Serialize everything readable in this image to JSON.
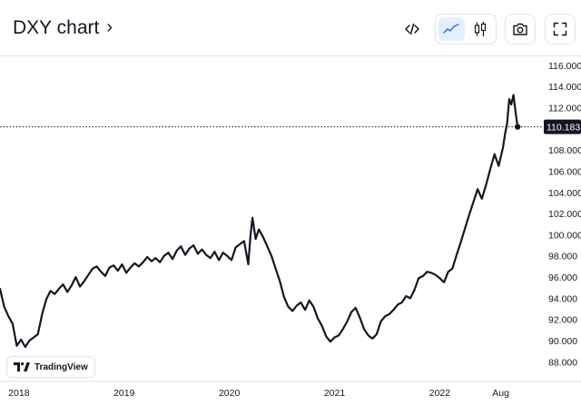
{
  "header": {
    "title": "DXY chart",
    "chevron": "›",
    "tools": {
      "embed_icon": "code-icon",
      "line_icon": "line-chart-icon",
      "candle_icon": "candlestick-icon",
      "camera_icon": "camera-icon",
      "fullscreen_icon": "fullscreen-icon"
    }
  },
  "watermark": {
    "text": "TradingView",
    "icon": "tradingview-logo-icon"
  },
  "colors": {
    "line": "#131722",
    "accent": "#2962ff",
    "active_bg": "#e3effd",
    "price_label_bg": "#131722"
  },
  "chart_data": {
    "type": "line",
    "ylim": [
      87.0,
      116.5
    ],
    "y_ticks": [
      "116.000",
      "114.000",
      "112.000",
      "110.000",
      "108.000",
      "106.000",
      "104.000",
      "102.000",
      "100.000",
      "98.000",
      "96.000",
      "94.000",
      "92.000",
      "90.000",
      "88.000"
    ],
    "y_tick_values": [
      116,
      114,
      112,
      110,
      108,
      106,
      104,
      102,
      100,
      98,
      96,
      94,
      92,
      90,
      88
    ],
    "x_ticks": [
      {
        "label": "2018",
        "x": 2018.0
      },
      {
        "label": "2019",
        "x": 2019.0
      },
      {
        "label": "2020",
        "x": 2020.0
      },
      {
        "label": "2021",
        "x": 2021.0
      },
      {
        "label": "2022",
        "x": 2022.0
      },
      {
        "label": "Aug",
        "x": 2022.58
      }
    ],
    "xlim": [
      2017.82,
      2022.98
    ],
    "last_price": {
      "label": "110.183",
      "value": 110.183
    },
    "series": [
      {
        "x": [
          2017.82,
          2017.86,
          2017.9,
          2017.94,
          2017.98,
          2018.02,
          2018.06,
          2018.1,
          2018.14,
          2018.18,
          2018.22,
          2018.26,
          2018.3,
          2018.34,
          2018.38,
          2018.42,
          2018.46,
          2018.5,
          2018.54,
          2018.58,
          2018.62,
          2018.66,
          2018.7,
          2018.74,
          2018.78,
          2018.82,
          2018.86,
          2018.9,
          2018.94,
          2018.98,
          2019.02,
          2019.06,
          2019.1,
          2019.14,
          2019.18,
          2019.22,
          2019.26,
          2019.3,
          2019.34,
          2019.38,
          2019.42,
          2019.46,
          2019.5,
          2019.54,
          2019.58,
          2019.62,
          2019.66,
          2019.7,
          2019.74,
          2019.78,
          2019.82,
          2019.86,
          2019.9,
          2019.94,
          2019.98,
          2020.02,
          2020.06,
          2020.1,
          2020.14,
          2020.18,
          2020.2,
          2020.22,
          2020.25,
          2020.28,
          2020.32,
          2020.36,
          2020.4,
          2020.44,
          2020.48,
          2020.52,
          2020.56,
          2020.6,
          2020.64,
          2020.68,
          2020.72,
          2020.76,
          2020.8,
          2020.84,
          2020.88,
          2020.92,
          2020.96,
          2021.0,
          2021.04,
          2021.08,
          2021.12,
          2021.16,
          2021.2,
          2021.24,
          2021.28,
          2021.32,
          2021.36,
          2021.4,
          2021.44,
          2021.48,
          2021.52,
          2021.56,
          2021.6,
          2021.64,
          2021.68,
          2021.72,
          2021.76,
          2021.8,
          2021.84,
          2021.88,
          2021.92,
          2021.96,
          2022.0,
          2022.04,
          2022.08,
          2022.12,
          2022.16,
          2022.2,
          2022.24,
          2022.28,
          2022.32,
          2022.36,
          2022.4,
          2022.44,
          2022.48,
          2022.52,
          2022.56,
          2022.6,
          2022.62,
          2022.64,
          2022.66,
          2022.68,
          2022.7,
          2022.72,
          2022.74
        ],
        "y": [
          94.9,
          93.2,
          92.3,
          91.6,
          89.5,
          90.1,
          89.4,
          90.0,
          90.3,
          90.6,
          92.5,
          93.9,
          94.7,
          94.4,
          94.9,
          95.3,
          94.6,
          95.2,
          96.0,
          95.1,
          95.6,
          96.2,
          96.8,
          97.0,
          96.5,
          96.1,
          96.9,
          97.1,
          96.6,
          97.2,
          96.4,
          96.9,
          97.3,
          97.0,
          97.4,
          97.9,
          97.5,
          97.8,
          97.4,
          98.0,
          98.3,
          97.7,
          98.5,
          98.9,
          98.1,
          98.7,
          99.0,
          98.2,
          98.6,
          98.1,
          97.8,
          98.4,
          97.6,
          98.3,
          98.0,
          97.6,
          98.8,
          99.1,
          99.4,
          97.2,
          99.8,
          101.6,
          99.6,
          100.5,
          99.8,
          98.9,
          98.0,
          96.8,
          95.6,
          94.1,
          93.2,
          92.8,
          93.3,
          93.6,
          92.9,
          93.8,
          93.2,
          92.1,
          91.4,
          90.4,
          89.9,
          90.3,
          90.5,
          91.1,
          91.8,
          92.7,
          93.1,
          92.2,
          91.1,
          90.5,
          90.2,
          90.6,
          91.8,
          92.3,
          92.5,
          92.9,
          93.4,
          93.6,
          94.2,
          94.0,
          94.8,
          95.9,
          96.1,
          96.5,
          96.4,
          96.2,
          95.9,
          95.5,
          96.5,
          96.8,
          98.1,
          99.3,
          100.6,
          101.9,
          103.1,
          104.3,
          103.4,
          104.7,
          106.2,
          107.6,
          106.5,
          108.2,
          109.5,
          110.5,
          112.8,
          112.3,
          113.2,
          111.6,
          110.183
        ]
      }
    ]
  }
}
